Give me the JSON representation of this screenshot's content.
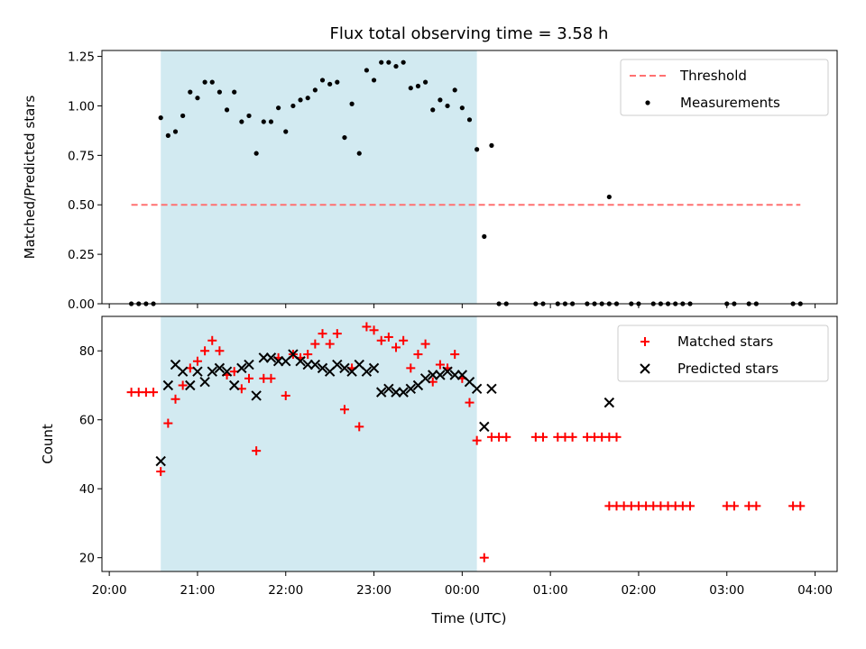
{
  "title": "Flux total observing time = 3.58 h",
  "x_axis_label": "Time (UTC)",
  "x_ticks": [
    "20:00",
    "21:00",
    "22:00",
    "23:00",
    "00:00",
    "01:00",
    "02:00",
    "03:00",
    "04:00"
  ],
  "colors": {
    "shade": "#add8e6",
    "threshold": "#ff7070",
    "matched": "#ff0000",
    "predicted": "#000000",
    "measurement": "#000000"
  },
  "chart_data": [
    {
      "type": "scatter",
      "ylabel": "Matched/Predicted stars",
      "ylim": [
        0,
        1.28
      ],
      "yticks": [
        "0.00",
        "0.25",
        "0.50",
        "0.75",
        "1.00",
        "1.25"
      ],
      "xlim": [
        "19:55",
        "04:15"
      ],
      "shaded_interval": [
        "20:35",
        "00:10"
      ],
      "threshold": {
        "name": "Threshold",
        "value": 0.5,
        "x_range": [
          "20:15",
          "03:50"
        ]
      },
      "legend": {
        "position": "top-right",
        "entries": [
          "Threshold",
          "Measurements"
        ]
      },
      "series": [
        {
          "name": "Measurements",
          "marker": "dot",
          "points": [
            [
              "20:15",
              0
            ],
            [
              "20:20",
              0
            ],
            [
              "20:25",
              0
            ],
            [
              "20:30",
              0
            ],
            [
              "20:35",
              0.94
            ],
            [
              "20:40",
              0.85
            ],
            [
              "20:45",
              0.87
            ],
            [
              "20:50",
              0.95
            ],
            [
              "20:55",
              1.07
            ],
            [
              "21:00",
              1.04
            ],
            [
              "21:05",
              1.12
            ],
            [
              "21:10",
              1.12
            ],
            [
              "21:15",
              1.07
            ],
            [
              "21:20",
              0.98
            ],
            [
              "21:25",
              1.07
            ],
            [
              "21:30",
              0.92
            ],
            [
              "21:35",
              0.95
            ],
            [
              "21:40",
              0.76
            ],
            [
              "21:45",
              0.92
            ],
            [
              "21:50",
              0.92
            ],
            [
              "21:55",
              0.99
            ],
            [
              "22:00",
              0.87
            ],
            [
              "22:05",
              1.0
            ],
            [
              "22:10",
              1.03
            ],
            [
              "22:15",
              1.04
            ],
            [
              "22:20",
              1.08
            ],
            [
              "22:25",
              1.13
            ],
            [
              "22:30",
              1.11
            ],
            [
              "22:35",
              1.12
            ],
            [
              "22:40",
              0.84
            ],
            [
              "22:45",
              1.01
            ],
            [
              "22:50",
              0.76
            ],
            [
              "22:55",
              1.18
            ],
            [
              "23:00",
              1.13
            ],
            [
              "23:05",
              1.22
            ],
            [
              "23:10",
              1.22
            ],
            [
              "23:15",
              1.2
            ],
            [
              "23:20",
              1.22
            ],
            [
              "23:25",
              1.09
            ],
            [
              "23:30",
              1.1
            ],
            [
              "23:35",
              1.12
            ],
            [
              "23:40",
              0.98
            ],
            [
              "23:45",
              1.03
            ],
            [
              "23:50",
              1.0
            ],
            [
              "23:55",
              1.08
            ],
            [
              "00:00",
              0.99
            ],
            [
              "00:05",
              0.93
            ],
            [
              "00:10",
              0.78
            ],
            [
              "00:15",
              0.34
            ],
            [
              "00:20",
              0.8
            ],
            [
              "00:25",
              0
            ],
            [
              "00:30",
              0
            ],
            [
              "00:50",
              0
            ],
            [
              "00:55",
              0
            ],
            [
              "01:05",
              0
            ],
            [
              "01:10",
              0
            ],
            [
              "01:15",
              0
            ],
            [
              "01:25",
              0
            ],
            [
              "01:30",
              0
            ],
            [
              "01:35",
              0
            ],
            [
              "01:40",
              0
            ],
            [
              "01:45",
              0
            ],
            [
              "01:40",
              0.54
            ],
            [
              "01:55",
              0
            ],
            [
              "02:00",
              0
            ],
            [
              "02:10",
              0
            ],
            [
              "02:15",
              0
            ],
            [
              "02:20",
              0
            ],
            [
              "02:25",
              0
            ],
            [
              "02:30",
              0
            ],
            [
              "02:35",
              0
            ],
            [
              "03:00",
              0
            ],
            [
              "03:05",
              0
            ],
            [
              "03:15",
              0
            ],
            [
              "03:20",
              0
            ],
            [
              "03:45",
              0
            ],
            [
              "03:50",
              0
            ]
          ]
        }
      ]
    },
    {
      "type": "scatter",
      "ylabel": "Count",
      "ylim": [
        16,
        90
      ],
      "yticks": [
        "20",
        "40",
        "60",
        "80"
      ],
      "xlim": [
        "19:55",
        "04:15"
      ],
      "shaded_interval": [
        "20:35",
        "00:10"
      ],
      "legend": {
        "position": "top-right",
        "entries": [
          "Matched stars",
          "Predicted stars"
        ]
      },
      "series": [
        {
          "name": "Matched stars",
          "marker": "plus",
          "points": [
            [
              "20:15",
              68
            ],
            [
              "20:20",
              68
            ],
            [
              "20:25",
              68
            ],
            [
              "20:30",
              68
            ],
            [
              "20:35",
              45
            ],
            [
              "20:40",
              59
            ],
            [
              "20:45",
              66
            ],
            [
              "20:50",
              70
            ],
            [
              "20:55",
              75
            ],
            [
              "21:00",
              77
            ],
            [
              "21:05",
              80
            ],
            [
              "21:10",
              83
            ],
            [
              "21:15",
              80
            ],
            [
              "21:20",
              73
            ],
            [
              "21:25",
              74
            ],
            [
              "21:30",
              69
            ],
            [
              "21:35",
              72
            ],
            [
              "21:40",
              51
            ],
            [
              "21:45",
              72
            ],
            [
              "21:50",
              72
            ],
            [
              "21:55",
              78
            ],
            [
              "22:00",
              67
            ],
            [
              "22:05",
              79
            ],
            [
              "22:10",
              78
            ],
            [
              "22:15",
              79
            ],
            [
              "22:20",
              82
            ],
            [
              "22:25",
              85
            ],
            [
              "22:30",
              82
            ],
            [
              "22:35",
              85
            ],
            [
              "22:40",
              63
            ],
            [
              "22:45",
              75
            ],
            [
              "22:50",
              58
            ],
            [
              "22:55",
              87
            ],
            [
              "23:00",
              86
            ],
            [
              "23:05",
              83
            ],
            [
              "23:10",
              84
            ],
            [
              "23:15",
              81
            ],
            [
              "23:20",
              83
            ],
            [
              "23:25",
              75
            ],
            [
              "23:30",
              79
            ],
            [
              "23:35",
              82
            ],
            [
              "23:40",
              71
            ],
            [
              "23:45",
              76
            ],
            [
              "23:50",
              75
            ],
            [
              "23:55",
              79
            ],
            [
              "00:00",
              72
            ],
            [
              "00:05",
              65
            ],
            [
              "00:10",
              54
            ],
            [
              "00:15",
              20
            ],
            [
              "00:20",
              55
            ],
            [
              "00:25",
              55
            ],
            [
              "00:30",
              55
            ],
            [
              "00:50",
              55
            ],
            [
              "00:55",
              55
            ],
            [
              "01:05",
              55
            ],
            [
              "01:10",
              55
            ],
            [
              "01:15",
              55
            ],
            [
              "01:25",
              55
            ],
            [
              "01:30",
              55
            ],
            [
              "01:35",
              55
            ],
            [
              "01:40",
              55
            ],
            [
              "01:45",
              55
            ],
            [
              "01:40",
              35
            ],
            [
              "01:45",
              35
            ],
            [
              "01:50",
              35
            ],
            [
              "01:55",
              35
            ],
            [
              "02:00",
              35
            ],
            [
              "02:05",
              35
            ],
            [
              "02:10",
              35
            ],
            [
              "02:15",
              35
            ],
            [
              "02:20",
              35
            ],
            [
              "02:25",
              35
            ],
            [
              "02:30",
              35
            ],
            [
              "02:35",
              35
            ],
            [
              "03:00",
              35
            ],
            [
              "03:05",
              35
            ],
            [
              "03:15",
              35
            ],
            [
              "03:20",
              35
            ],
            [
              "03:45",
              35
            ],
            [
              "03:50",
              35
            ]
          ]
        },
        {
          "name": "Predicted stars",
          "marker": "cross",
          "points": [
            [
              "20:35",
              48
            ],
            [
              "20:40",
              70
            ],
            [
              "20:45",
              76
            ],
            [
              "20:50",
              74
            ],
            [
              "20:55",
              70
            ],
            [
              "21:00",
              74
            ],
            [
              "21:05",
              71
            ],
            [
              "21:10",
              74
            ],
            [
              "21:15",
              75
            ],
            [
              "21:20",
              74
            ],
            [
              "21:25",
              70
            ],
            [
              "21:30",
              75
            ],
            [
              "21:35",
              76
            ],
            [
              "21:40",
              67
            ],
            [
              "21:45",
              78
            ],
            [
              "21:50",
              78
            ],
            [
              "21:55",
              77
            ],
            [
              "22:00",
              77
            ],
            [
              "22:05",
              79
            ],
            [
              "22:10",
              77
            ],
            [
              "22:15",
              76
            ],
            [
              "22:20",
              76
            ],
            [
              "22:25",
              75
            ],
            [
              "22:30",
              74
            ],
            [
              "22:35",
              76
            ],
            [
              "22:40",
              75
            ],
            [
              "22:45",
              74
            ],
            [
              "22:50",
              76
            ],
            [
              "22:55",
              74
            ],
            [
              "23:00",
              75
            ],
            [
              "23:05",
              68
            ],
            [
              "23:10",
              69
            ],
            [
              "23:15",
              68
            ],
            [
              "23:20",
              68
            ],
            [
              "23:25",
              69
            ],
            [
              "23:30",
              70
            ],
            [
              "23:35",
              72
            ],
            [
              "23:40",
              73
            ],
            [
              "23:45",
              73
            ],
            [
              "23:50",
              74
            ],
            [
              "23:55",
              73
            ],
            [
              "00:00",
              73
            ],
            [
              "00:05",
              71
            ],
            [
              "00:10",
              69
            ],
            [
              "00:15",
              58
            ],
            [
              "00:20",
              69
            ],
            [
              "01:40",
              65
            ]
          ]
        }
      ]
    }
  ]
}
